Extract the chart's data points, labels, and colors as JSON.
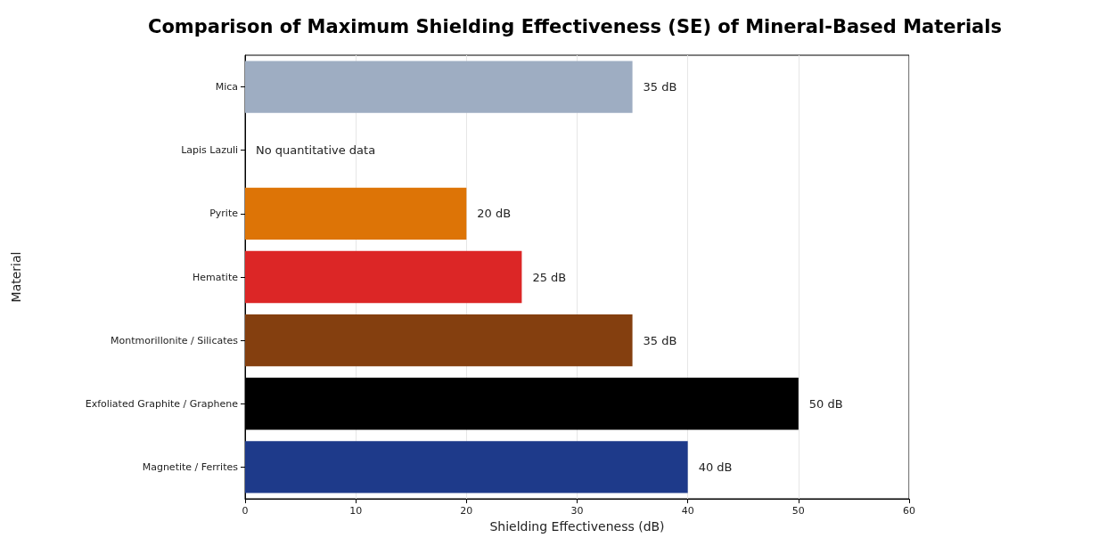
{
  "chart_data": {
    "type": "bar",
    "orientation": "horizontal",
    "title": "Comparison of Maximum Shielding Effectiveness (SE) of Mineral-Based Materials",
    "xlabel": "Shielding Effectiveness (dB)",
    "ylabel": "Material",
    "categories": [
      "Mica",
      "Lapis Lazuli",
      "Pyrite",
      "Hematite",
      "Montmorillonite / Silicates",
      "Exfoliated Graphite / Graphene",
      "Magnetite / Ferrites"
    ],
    "values": [
      35,
      null,
      20,
      25,
      35,
      50,
      40
    ],
    "colors": [
      "#9eadc2",
      null,
      "#dd7406",
      "#dc2626",
      "#843f0f",
      "#000000",
      "#1e3a8a"
    ],
    "value_labels": [
      "35 dB",
      "No quantitative data",
      "20 dB",
      "25 dB",
      "35 dB",
      "50 dB",
      "40 dB"
    ],
    "xlim": [
      0,
      60
    ],
    "xticks": [
      0,
      10,
      20,
      30,
      40,
      50,
      60
    ],
    "grid": "x"
  }
}
